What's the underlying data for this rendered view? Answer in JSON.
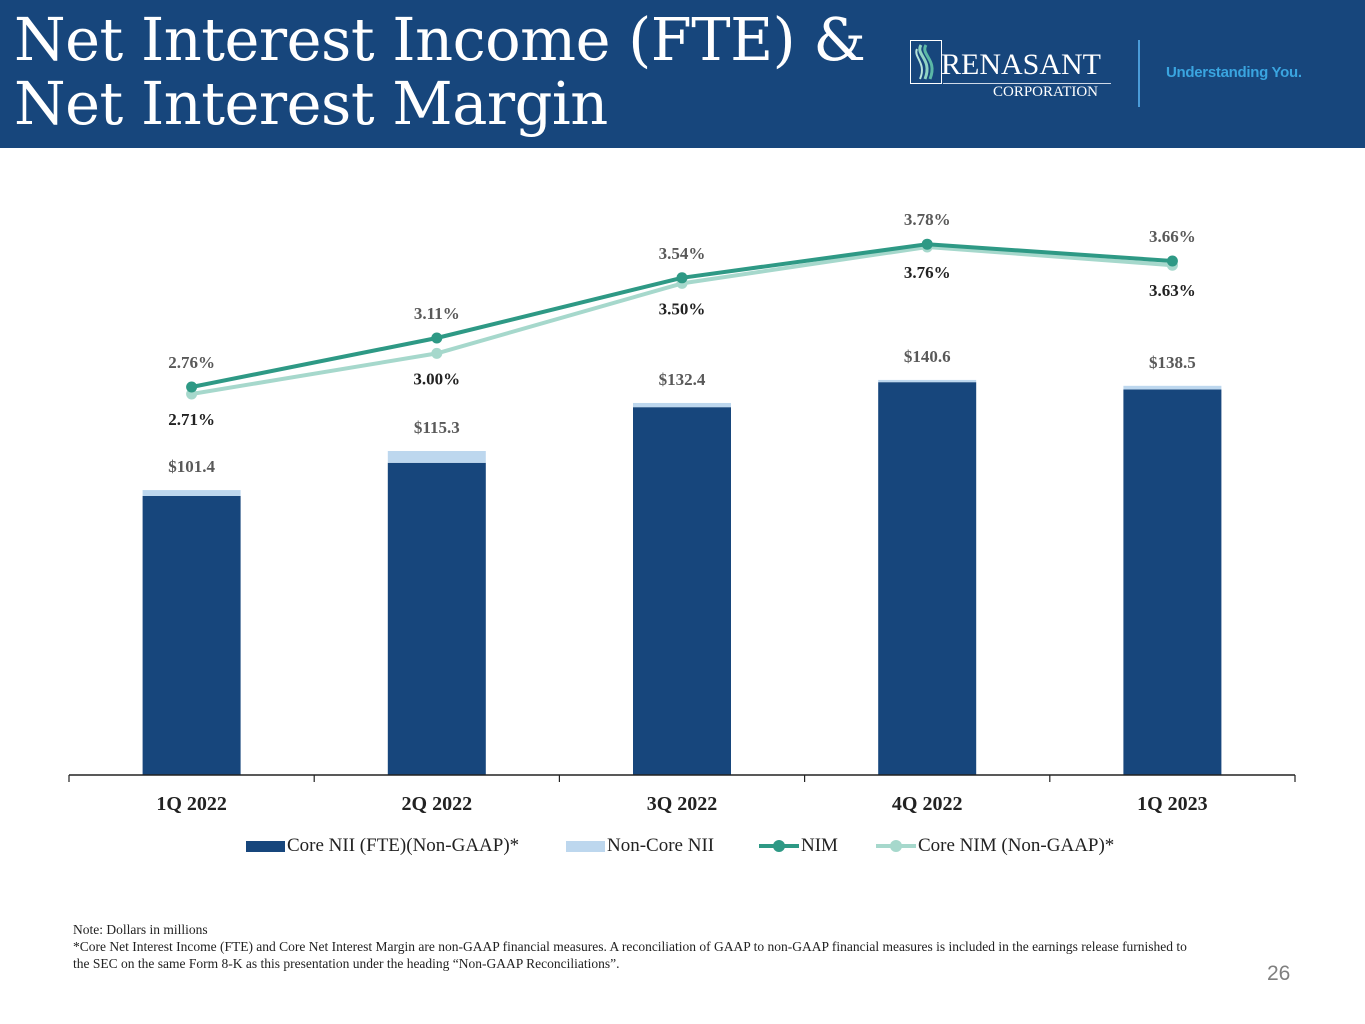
{
  "header": {
    "title_line1": "Net Interest Income (FTE) &",
    "title_line2": "Net Interest Margin",
    "logo_name": "RENASANT",
    "logo_sub": "CORPORATION",
    "tagline": "Understanding You.",
    "colors": {
      "background": "#17467c",
      "tagline": "#3aa5e0"
    }
  },
  "chart_data": {
    "type": "bar",
    "stacked": true,
    "title": "Net Interest Income (FTE) & Net Interest Margin",
    "xlabel": "",
    "ylabel": "",
    "categories": [
      "1Q 2022",
      "2Q 2022",
      "3Q 2022",
      "4Q 2022",
      "1Q 2023"
    ],
    "series": [
      {
        "name": "Core NII (FTE)(Non-GAAP)*",
        "type": "bar",
        "color": "#17467c",
        "values": [
          99.3,
          111.1,
          130.9,
          139.8,
          137.2
        ]
      },
      {
        "name": "Non-Core NII",
        "type": "bar",
        "color": "#bdd7ee",
        "values": [
          2.1,
          4.2,
          1.5,
          0.8,
          1.3
        ]
      },
      {
        "name": "NIM",
        "type": "line",
        "color": "#2e9985",
        "values": [
          2.76,
          3.11,
          3.54,
          3.78,
          3.66
        ],
        "labels": [
          "2.76%",
          "3.11%",
          "3.54%",
          "3.78%",
          "3.66%"
        ]
      },
      {
        "name": "Core NIM (Non-GAAP)*",
        "type": "line",
        "color": "#a6d8cc",
        "values": [
          2.71,
          3.0,
          3.5,
          3.76,
          3.63
        ],
        "labels": [
          "2.71%",
          "3.00%",
          "3.50%",
          "3.76%",
          "3.63%"
        ]
      }
    ],
    "bar_totals": [
      101.4,
      115.3,
      132.4,
      140.6,
      138.5
    ],
    "bar_total_labels": [
      "$101.4",
      "$115.3",
      "$132.4",
      "$140.6",
      "$138.5"
    ],
    "legend_position": "bottom",
    "grid": false
  },
  "notes": {
    "line1": "Note: Dollars in millions",
    "line2": "*Core Net Interest Income (FTE) and Core Net Interest Margin are non-GAAP financial measures. A reconciliation of GAAP to non-GAAP financial measures is included in the earnings release furnished to the SEC on the same Form 8-K as this presentation under the heading “Non-GAAP Reconciliations”."
  },
  "page_number": "26"
}
